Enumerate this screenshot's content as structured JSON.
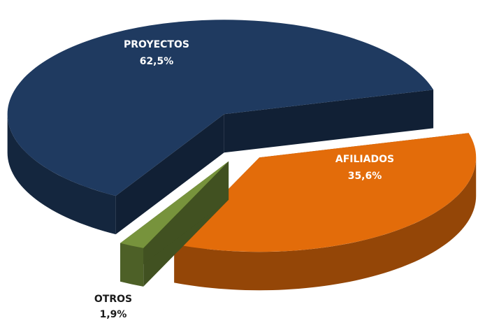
{
  "chart_data": {
    "type": "pie3d",
    "categories": [
      "PROYECTOS",
      "AFILIADOS",
      "OTROS"
    ],
    "values": [
      62.5,
      35.6,
      1.9
    ],
    "value_labels": [
      "62,5%",
      "35,6%",
      "1,9%"
    ],
    "colors": [
      "#1f3a60",
      "#e36c0a",
      "#77933c"
    ]
  }
}
